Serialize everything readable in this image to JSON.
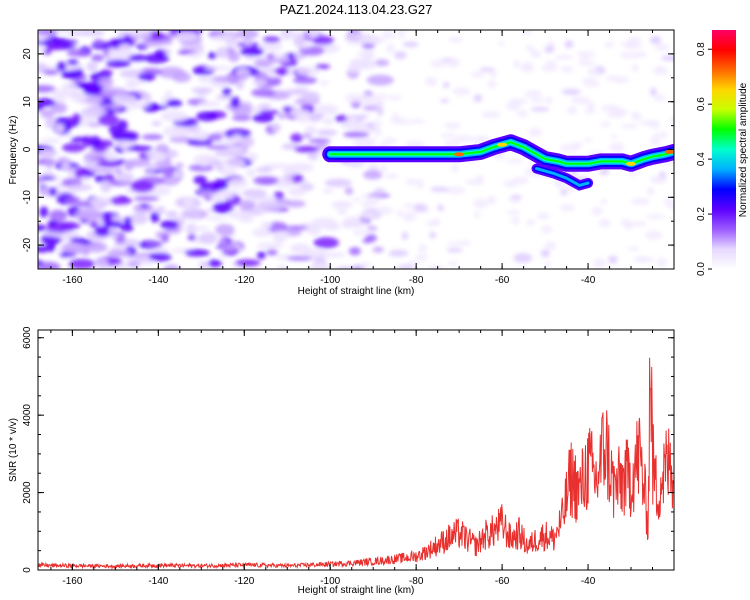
{
  "figure": {
    "title": "PAZ1.2024.113.04.23.G27"
  },
  "chart_data": [
    {
      "type": "heatmap",
      "xlabel": "Height of straight line (km)",
      "ylabel": "Frequency (Hz)",
      "xlim": [
        -168,
        -20
      ],
      "ylim": [
        -25,
        25
      ],
      "xticks": [
        "-160",
        "-140",
        "-120",
        "-100",
        "-80",
        "-60",
        "-40"
      ],
      "yticks": [
        "-20",
        "-10",
        "0",
        "10",
        "20"
      ],
      "signal_ridge": {
        "x": [
          -100,
          -95,
          -90,
          -85,
          -80,
          -75,
          -70,
          -65,
          -62,
          -58,
          -55,
          -52,
          -50,
          -47,
          -45,
          -42,
          -40,
          -37,
          -35,
          -32,
          -30,
          -27,
          -25,
          -22,
          -20
        ],
        "y": [
          -1,
          -1,
          -1,
          -1,
          -1,
          -1,
          -1,
          -0.5,
          0.5,
          1.5,
          0.5,
          -1,
          -2,
          -2.5,
          -3,
          -3,
          -3,
          -2.5,
          -2.5,
          -2.5,
          -3,
          -2,
          -1.5,
          -1,
          -0.5
        ]
      },
      "colorbar": {
        "label": "Normalized spectral amplitude",
        "range": [
          0,
          0.87
        ],
        "ticks": [
          "0.0",
          "0.2",
          "0.4",
          "0.6",
          "0.8"
        ],
        "colormap": [
          "#ffffff",
          "#e6d8ff",
          "#9b59ff",
          "#5a00ff",
          "#0000ff",
          "#00b0ff",
          "#00ffcc",
          "#00ff00",
          "#c8ff00",
          "#ffd700",
          "#ff6600",
          "#ff0000",
          "#ff0066"
        ]
      }
    },
    {
      "type": "line",
      "xlabel": "Height of straight line (km)",
      "ylabel": "SNR (10 * v/v)",
      "xlim": [
        -168,
        -20
      ],
      "ylim": [
        0,
        6200
      ],
      "xticks": [
        "-160",
        "-140",
        "-120",
        "-100",
        "-80",
        "-60",
        "-40"
      ],
      "yticks": [
        "0",
        "2000",
        "4000",
        "6000"
      ],
      "series": [
        {
          "color": "#e8302e",
          "x": [
            -168,
            -160,
            -150,
            -140,
            -130,
            -120,
            -110,
            -100,
            -95,
            -90,
            -85,
            -80,
            -78,
            -75,
            -72,
            -70,
            -68,
            -66,
            -64,
            -62,
            -60,
            -58,
            -56,
            -54,
            -52,
            -50,
            -48,
            -46,
            -44,
            -42,
            -40,
            -38,
            -36,
            -34,
            -32,
            -30,
            -28,
            -26,
            -25.5,
            -25,
            -24,
            -22,
            -20
          ],
          "y": [
            120,
            110,
            100,
            120,
            110,
            130,
            110,
            150,
            180,
            220,
            280,
            350,
            450,
            650,
            850,
            950,
            780,
            620,
            900,
            1000,
            1200,
            800,
            950,
            600,
            800,
            900,
            800,
            1300,
            2400,
            2000,
            2700,
            2300,
            3300,
            2100,
            2300,
            2400,
            3000,
            1200,
            6100,
            2800,
            2000,
            2600,
            2800
          ]
        }
      ]
    }
  ]
}
